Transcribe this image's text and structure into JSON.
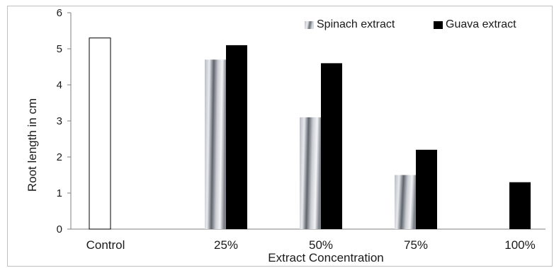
{
  "chart_data": {
    "type": "bar",
    "categories": [
      "Control",
      "25%",
      "50%",
      "75%",
      "100%"
    ],
    "xlabel": "Extract Concentration",
    "ylabel": "Root length in cm",
    "ylim": [
      0,
      6
    ],
    "yticks": [
      0,
      1,
      2,
      3,
      4,
      5,
      6
    ],
    "grid": false,
    "legend": "top-right",
    "control": {
      "category": "Control",
      "value": 5.3,
      "color": "#ffffff"
    },
    "series": [
      {
        "name": "Spinach extract",
        "values": [
          null,
          4.7,
          3.1,
          1.5,
          null
        ],
        "color": "#9a9ea6",
        "pattern": "gradient-stripe"
      },
      {
        "name": "Guava extract",
        "values": [
          null,
          5.1,
          4.6,
          2.2,
          1.3
        ],
        "color": "#000000"
      }
    ]
  }
}
